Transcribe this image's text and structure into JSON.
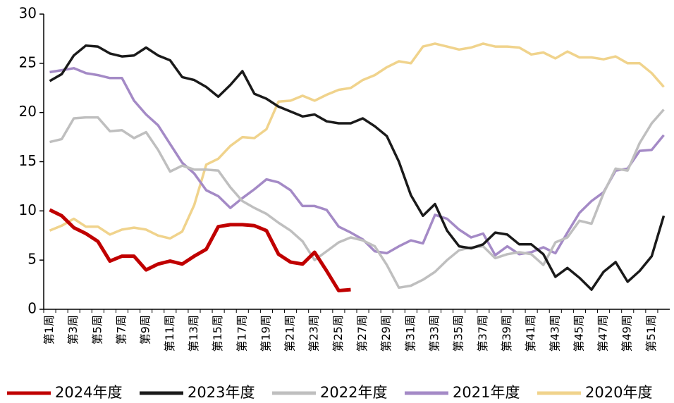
{
  "chart_data": {
    "type": "line",
    "categories": [
      "第1周",
      null,
      "第3周",
      null,
      "第5周",
      null,
      "第7周",
      null,
      "第9周",
      null,
      "第11周",
      null,
      "第13周",
      null,
      "第15周",
      null,
      "第17周",
      null,
      "第19周",
      null,
      "第21周",
      null,
      "第23周",
      null,
      "第25周",
      null,
      "第27周",
      null,
      "第29周",
      null,
      "第31周",
      null,
      "第33周",
      null,
      "第35周",
      null,
      "第37周",
      null,
      "第39周",
      null,
      "第41周",
      null,
      "第43周",
      null,
      "第45周",
      null,
      "第47周",
      null,
      "第49周",
      null,
      "第51周",
      null
    ],
    "ylim": [
      0,
      30
    ],
    "yticks": [
      0,
      5,
      10,
      15,
      20,
      25,
      30
    ],
    "grid": false,
    "legend": "bottom",
    "series": [
      {
        "name": "2024年度",
        "color": "#c00000",
        "values": [
          10.1,
          9.5,
          8.3,
          7.7,
          6.9,
          4.9,
          5.4,
          5.4,
          4.0,
          4.6,
          4.9,
          4.6,
          5.4,
          6.1,
          8.4,
          8.6,
          8.6,
          8.5,
          8.0,
          5.6,
          4.8,
          4.6,
          5.8,
          3.9,
          1.9,
          2.0,
          null,
          null,
          null,
          null,
          null,
          null,
          null,
          null,
          null,
          null,
          null,
          null,
          null,
          null,
          null,
          null,
          null,
          null,
          null,
          null,
          null,
          null,
          null,
          null,
          null,
          null
        ]
      },
      {
        "name": "2023年度",
        "color": "#1a1a1a",
        "values": [
          23.2,
          23.9,
          25.8,
          26.8,
          26.7,
          26.0,
          25.7,
          25.8,
          26.6,
          25.8,
          25.3,
          23.6,
          23.3,
          22.6,
          21.6,
          22.8,
          24.2,
          21.9,
          21.4,
          20.6,
          20.1,
          19.6,
          19.8,
          19.1,
          18.9,
          18.9,
          19.4,
          18.6,
          17.6,
          15.0,
          11.6,
          9.5,
          10.7,
          8.0,
          6.4,
          6.2,
          6.6,
          7.8,
          7.6,
          6.6,
          6.6,
          5.6,
          3.3,
          4.2,
          3.2,
          2.0,
          3.8,
          4.8,
          2.8,
          3.9,
          5.4,
          9.5
        ]
      },
      {
        "name": "2022年度",
        "color": "#bfbfbf",
        "values": [
          17.0,
          17.3,
          19.4,
          19.5,
          19.5,
          18.1,
          18.2,
          17.4,
          18.0,
          16.2,
          14.0,
          14.6,
          14.2,
          14.2,
          14.1,
          12.4,
          11.0,
          10.3,
          9.7,
          8.8,
          8.0,
          6.9,
          5.0,
          5.9,
          6.8,
          7.3,
          7.0,
          6.4,
          4.5,
          2.2,
          2.4,
          3.0,
          3.8,
          5.0,
          6.0,
          6.3,
          6.4,
          5.2,
          5.6,
          5.8,
          5.6,
          4.5,
          6.8,
          7.3,
          9.0,
          8.7,
          11.8,
          14.3,
          14.1,
          16.9,
          18.9,
          20.3
        ]
      },
      {
        "name": "2021年度",
        "color": "#a48ac6",
        "values": [
          24.1,
          24.3,
          24.5,
          24.0,
          23.8,
          23.5,
          23.5,
          21.2,
          19.8,
          18.7,
          16.8,
          14.9,
          13.8,
          12.1,
          11.5,
          10.3,
          11.3,
          12.2,
          13.2,
          12.9,
          12.1,
          10.5,
          10.5,
          10.1,
          8.4,
          7.8,
          7.1,
          5.9,
          5.7,
          6.4,
          7.0,
          6.7,
          9.6,
          9.2,
          8.1,
          7.3,
          7.7,
          5.5,
          6.4,
          5.6,
          5.8,
          6.3,
          5.7,
          7.8,
          9.8,
          11.0,
          11.9,
          14.1,
          14.3,
          16.1,
          16.2,
          17.7
        ]
      },
      {
        "name": "2020年度",
        "color": "#f0d38c",
        "values": [
          8.0,
          8.5,
          9.2,
          8.4,
          8.4,
          7.6,
          8.1,
          8.3,
          8.1,
          7.5,
          7.2,
          7.9,
          10.6,
          14.7,
          15.3,
          16.6,
          17.5,
          17.4,
          18.3,
          21.1,
          21.2,
          21.7,
          21.2,
          21.8,
          22.3,
          22.5,
          23.3,
          23.8,
          24.6,
          25.2,
          25.0,
          26.7,
          27.0,
          26.7,
          26.4,
          26.6,
          27.0,
          26.7,
          26.7,
          26.6,
          25.9,
          26.1,
          25.5,
          26.2,
          25.6,
          25.6,
          25.4,
          25.7,
          25.0,
          25.0,
          24.0,
          22.6
        ]
      }
    ]
  }
}
